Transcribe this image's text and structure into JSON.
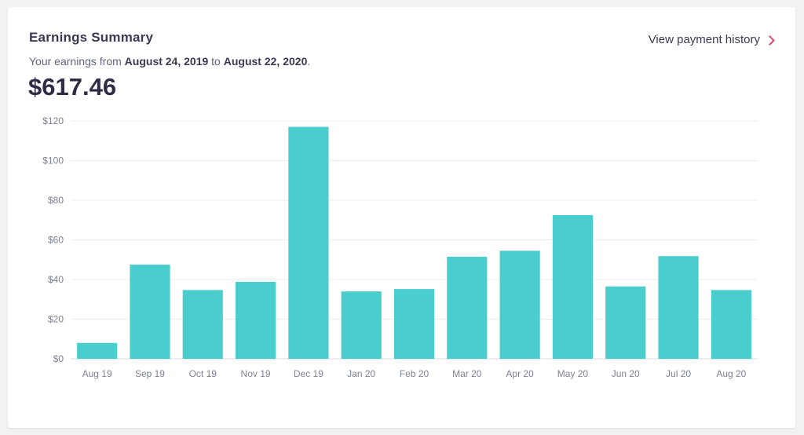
{
  "header": {
    "title": "Earnings Summary",
    "history_link": "View payment history",
    "subtitle_prefix": "Your earnings from ",
    "start_date": "August 24, 2019",
    "subtitle_mid": " to ",
    "end_date": "August 22, 2020",
    "subtitle_suffix": ".",
    "total": "$617.46"
  },
  "colors": {
    "bar": "#49cecd",
    "accent": "#e0486b",
    "grid": "#ececf1"
  },
  "chart_data": {
    "type": "bar",
    "title": "",
    "xlabel": "",
    "ylabel": "",
    "ylim": [
      0,
      120
    ],
    "yticks": [
      0,
      20,
      40,
      60,
      80,
      100,
      120
    ],
    "ytick_labels": [
      "$0",
      "$20",
      "$40",
      "$60",
      "$80",
      "$100",
      "$120"
    ],
    "grid": true,
    "categories": [
      "Aug 19",
      "Sep 19",
      "Oct 19",
      "Nov 19",
      "Dec 19",
      "Jan 20",
      "Feb 20",
      "Mar 20",
      "Apr 20",
      "May 20",
      "Jun 20",
      "Jul 20",
      "Aug 20"
    ],
    "values": [
      8,
      47.5,
      34.7,
      38.8,
      117,
      34,
      35.2,
      51.5,
      54.5,
      72.5,
      36.5,
      51.8,
      34.7
    ]
  }
}
